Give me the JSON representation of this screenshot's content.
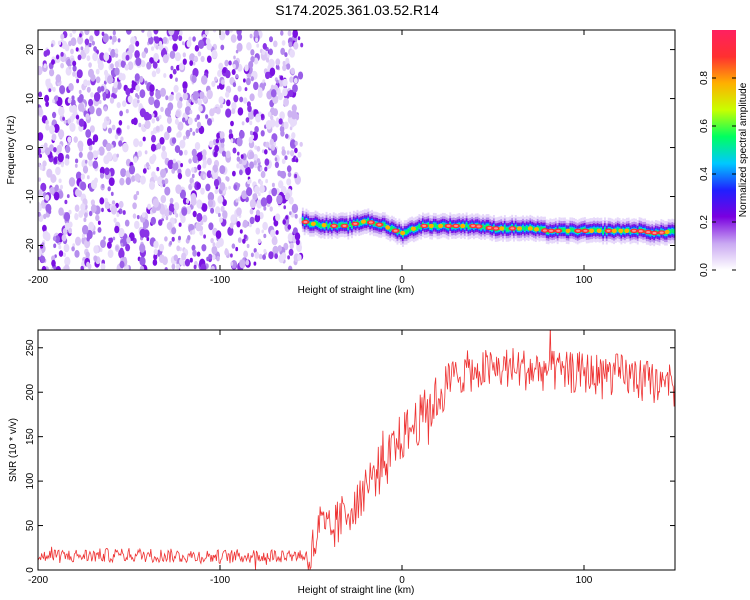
{
  "title": "S174.2025.361.03.52.R14",
  "chart_data": [
    {
      "type": "heatmap",
      "xlabel": "Height of straight line (km)",
      "ylabel": "Frequency (Hz)",
      "xlim": [
        -200,
        150
      ],
      "ylim": [
        -25,
        24
      ],
      "xticks": [
        -200,
        -100,
        0,
        100
      ],
      "yticks": [
        -20,
        -10,
        0,
        10,
        20
      ],
      "colorbar": {
        "label": "Normalized spectral amplitude",
        "range": [
          0,
          1
        ],
        "ticks": [
          0.0,
          0.2,
          0.4,
          0.6,
          0.8
        ],
        "colors": [
          "#ffffff",
          "#c9a8f2",
          "#7a00e0",
          "#2020ff",
          "#00c8ff",
          "#00ff60",
          "#c8ff00",
          "#ffb000",
          "#ff3030",
          "#ff2060"
        ]
      },
      "noise_region_x": [
        -200,
        -55
      ],
      "signal_track": {
        "x": [
          -55,
          -50,
          -40,
          -30,
          -20,
          -10,
          0,
          10,
          20,
          30,
          40,
          50,
          60,
          70,
          80,
          90,
          100,
          110,
          120,
          130,
          140,
          150
        ],
        "frequency": [
          -15.0,
          -15.5,
          -16.0,
          -16.0,
          -15.0,
          -16.0,
          -17.5,
          -16.0,
          -16.0,
          -16.0,
          -16.0,
          -16.5,
          -16.5,
          -16.5,
          -17.0,
          -17.0,
          -17.0,
          -17.0,
          -17.0,
          -17.0,
          -17.5,
          -17.0
        ]
      }
    },
    {
      "type": "line",
      "xlabel": "Height of straight line (km)",
      "ylabel": "SNR (10 * v/v)",
      "xlim": [
        -200,
        150
      ],
      "ylim": [
        0,
        270
      ],
      "xticks": [
        -200,
        -100,
        0,
        100
      ],
      "yticks": [
        0,
        50,
        100,
        150,
        200,
        250
      ],
      "color": "#ee3333",
      "series": [
        {
          "x": [
            -200,
            -175,
            -150,
            -125,
            -100,
            -75,
            -60,
            -50,
            -45,
            -40,
            -30,
            -20,
            -10,
            0,
            10,
            20,
            25,
            30,
            40,
            50,
            60,
            70,
            80,
            90,
            100,
            110,
            120,
            130,
            140,
            150
          ],
          "values": [
            15,
            16,
            17,
            16,
            15,
            16,
            17,
            16,
            50,
            40,
            65,
            95,
            120,
            150,
            170,
            195,
            210,
            220,
            225,
            225,
            228,
            225,
            225,
            222,
            222,
            220,
            220,
            215,
            210,
            205
          ]
        }
      ]
    }
  ]
}
